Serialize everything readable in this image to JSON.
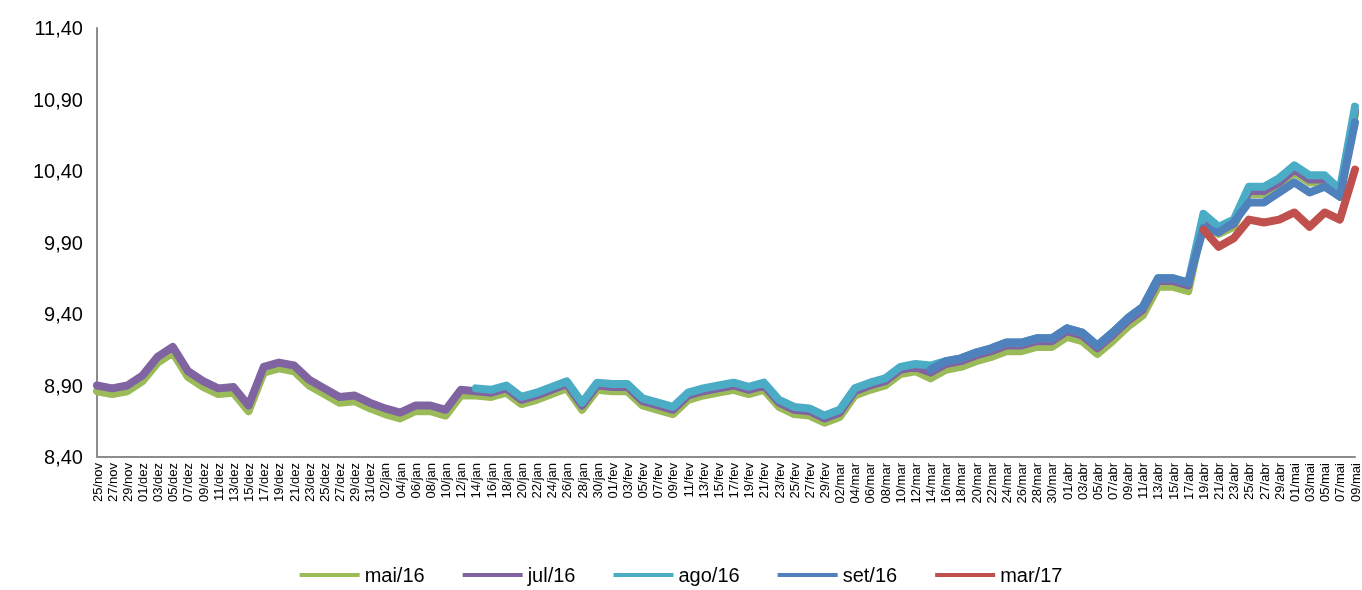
{
  "chart_data": {
    "type": "line",
    "categories": [
      "25/nov",
      "27/nov",
      "29/nov",
      "01/dez",
      "03/dez",
      "05/dez",
      "07/dez",
      "09/dez",
      "11/dez",
      "13/dez",
      "15/dez",
      "17/dez",
      "19/dez",
      "21/dez",
      "23/dez",
      "25/dez",
      "27/dez",
      "29/dez",
      "31/dez",
      "02/jan",
      "04/jan",
      "06/jan",
      "08/jan",
      "10/jan",
      "12/jan",
      "14/jan",
      "16/jan",
      "18/jan",
      "20/jan",
      "22/jan",
      "24/jan",
      "26/jan",
      "28/jan",
      "30/jan",
      "01/fev",
      "03/fev",
      "05/fev",
      "07/fev",
      "09/fev",
      "11/fev",
      "13/fev",
      "15/fev",
      "17/fev",
      "19/fev",
      "21/fev",
      "23/fev",
      "25/fev",
      "27/fev",
      "29/fev",
      "02/mar",
      "04/mar",
      "06/mar",
      "08/mar",
      "10/mar",
      "12/mar",
      "14/mar",
      "16/mar",
      "18/mar",
      "20/mar",
      "22/mar",
      "24/mar",
      "26/mar",
      "28/mar",
      "30/mar",
      "01/abr",
      "03/abr",
      "05/abr",
      "07/abr",
      "09/abr",
      "11/abr",
      "13/abr",
      "15/abr",
      "17/abr",
      "19/abr",
      "21/abr",
      "23/abr",
      "25/abr",
      "27/abr",
      "29/abr",
      "01/mai",
      "03/mai",
      "05/mai",
      "07/mai",
      "09/mai"
    ],
    "series": [
      {
        "name": "mai/16",
        "color": "#9bbb59",
        "values": [
          8.86,
          8.84,
          8.86,
          8.93,
          9.06,
          9.13,
          8.96,
          8.89,
          8.84,
          8.85,
          8.72,
          8.99,
          9.02,
          9.0,
          8.9,
          8.84,
          8.78,
          8.79,
          8.74,
          8.7,
          8.67,
          8.72,
          8.72,
          8.69,
          8.83,
          8.83,
          8.82,
          8.85,
          8.77,
          8.8,
          8.84,
          8.88,
          8.73,
          8.87,
          8.86,
          8.86,
          8.76,
          8.73,
          8.7,
          8.8,
          8.83,
          8.85,
          8.87,
          8.84,
          8.87,
          8.75,
          8.7,
          8.69,
          8.64,
          8.68,
          8.83,
          8.87,
          8.9,
          8.98,
          9.0,
          8.95,
          9.01,
          9.03,
          9.07,
          9.1,
          9.14,
          9.14,
          9.17,
          9.17,
          9.24,
          9.21,
          9.12,
          9.21,
          9.31,
          9.39,
          9.59,
          9.59,
          9.56,
          10.05,
          9.96,
          10.01,
          10.24,
          10.24,
          10.3,
          10.39,
          10.32,
          10.32,
          10.22,
          10.8
        ]
      },
      {
        "name": "jul/16",
        "color": "#8064a2",
        "values": [
          8.9,
          8.88,
          8.9,
          8.97,
          9.1,
          9.17,
          9.0,
          8.93,
          8.88,
          8.89,
          8.76,
          9.03,
          9.06,
          9.04,
          8.94,
          8.88,
          8.82,
          8.83,
          8.78,
          8.74,
          8.71,
          8.76,
          8.76,
          8.73,
          8.87,
          8.86,
          8.85,
          8.88,
          8.8,
          8.83,
          8.87,
          8.91,
          8.76,
          8.9,
          8.89,
          8.89,
          8.79,
          8.76,
          8.73,
          8.83,
          8.86,
          8.88,
          8.9,
          8.87,
          8.9,
          8.78,
          8.73,
          8.72,
          8.67,
          8.71,
          8.86,
          8.9,
          8.93,
          9.01,
          9.03,
          8.99,
          9.05,
          9.07,
          9.11,
          9.14,
          9.18,
          9.18,
          9.21,
          9.21,
          9.28,
          9.25,
          9.16,
          9.25,
          9.35,
          9.43,
          9.63,
          9.63,
          9.6,
          10.07,
          9.98,
          10.03,
          10.26,
          10.26,
          10.32,
          10.41,
          10.34,
          10.34,
          10.24,
          10.82
        ]
      },
      {
        "name": "ago/16",
        "color": "#4bacc6",
        "values": [
          null,
          null,
          null,
          null,
          null,
          null,
          null,
          null,
          null,
          null,
          null,
          null,
          null,
          null,
          null,
          null,
          null,
          null,
          null,
          null,
          null,
          null,
          null,
          null,
          null,
          8.88,
          8.87,
          8.9,
          8.82,
          8.85,
          8.89,
          8.93,
          8.78,
          8.92,
          8.91,
          8.91,
          8.81,
          8.78,
          8.75,
          8.85,
          8.88,
          8.9,
          8.92,
          8.89,
          8.92,
          8.8,
          8.75,
          8.74,
          8.69,
          8.73,
          8.88,
          8.92,
          8.95,
          9.03,
          9.05,
          9.04,
          9.07,
          9.09,
          9.13,
          9.16,
          9.2,
          9.2,
          9.23,
          9.23,
          9.3,
          9.27,
          9.18,
          9.27,
          9.37,
          9.45,
          9.65,
          9.65,
          9.62,
          10.1,
          10.01,
          10.06,
          10.29,
          10.29,
          10.35,
          10.44,
          10.37,
          10.37,
          10.27,
          10.85
        ]
      },
      {
        "name": "set/16",
        "color": "#4f81bd",
        "values": [
          null,
          null,
          null,
          null,
          null,
          null,
          null,
          null,
          null,
          null,
          null,
          null,
          null,
          null,
          null,
          null,
          null,
          null,
          null,
          null,
          null,
          null,
          null,
          null,
          null,
          null,
          null,
          null,
          null,
          null,
          null,
          null,
          null,
          null,
          null,
          null,
          null,
          null,
          null,
          null,
          null,
          null,
          null,
          null,
          null,
          null,
          null,
          null,
          null,
          null,
          null,
          null,
          null,
          null,
          null,
          9.01,
          9.07,
          9.09,
          9.13,
          9.16,
          9.2,
          9.2,
          9.23,
          9.23,
          9.3,
          9.27,
          9.18,
          9.27,
          9.37,
          9.45,
          9.65,
          9.65,
          9.62,
          10.0,
          9.97,
          10.04,
          10.18,
          10.18,
          10.25,
          10.32,
          10.25,
          10.29,
          10.22,
          10.74
        ]
      },
      {
        "name": "mar/17",
        "color": "#c0504d",
        "values": [
          null,
          null,
          null,
          null,
          null,
          null,
          null,
          null,
          null,
          null,
          null,
          null,
          null,
          null,
          null,
          null,
          null,
          null,
          null,
          null,
          null,
          null,
          null,
          null,
          null,
          null,
          null,
          null,
          null,
          null,
          null,
          null,
          null,
          null,
          null,
          null,
          null,
          null,
          null,
          null,
          null,
          null,
          null,
          null,
          null,
          null,
          null,
          null,
          null,
          null,
          null,
          null,
          null,
          null,
          null,
          null,
          null,
          null,
          null,
          null,
          null,
          null,
          null,
          null,
          null,
          null,
          null,
          null,
          null,
          null,
          null,
          null,
          null,
          9.99,
          9.87,
          9.93,
          10.06,
          10.04,
          10.06,
          10.11,
          10.01,
          10.11,
          10.06,
          10.41
        ]
      }
    ],
    "ylim": [
      8.4,
      11.4
    ],
    "yticks": [
      {
        "value": 8.4,
        "label": "8,40"
      },
      {
        "value": 8.9,
        "label": "8,90"
      },
      {
        "value": 9.4,
        "label": "9,40"
      },
      {
        "value": 9.9,
        "label": "9,90"
      },
      {
        "value": 10.4,
        "label": "10,40"
      },
      {
        "value": 10.9,
        "label": "10,90"
      },
      {
        "value": 11.4,
        "label": "11,40"
      }
    ],
    "grid": false,
    "legend": "bottom",
    "marker": "none",
    "line_style": "solid"
  }
}
